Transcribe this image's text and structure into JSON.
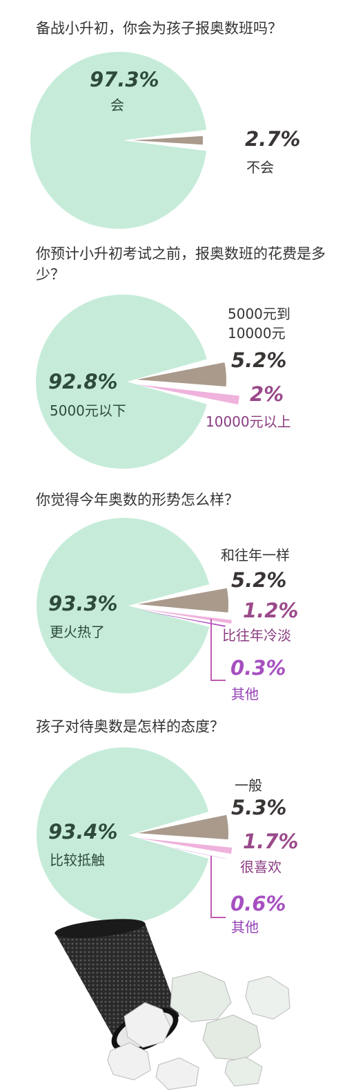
{
  "colors": {
    "main": "#c6ecd9",
    "gray": "#a99a8b",
    "pink": "#efb2dc",
    "purple": "#b04cc4"
  },
  "chart_data": [
    {
      "type": "pie",
      "title": "备战小升初，你会为孩子报奥数班吗？",
      "slices": [
        {
          "label": "会",
          "value": 97.3,
          "value_text": "97.3%",
          "color": "#c6ecd9"
        },
        {
          "label": "不会",
          "value": 2.7,
          "value_text": "2.7%",
          "color": "#a99a8b"
        }
      ]
    },
    {
      "type": "pie",
      "title": "你预计小升初考试之前，报奥数班的花费是多少？",
      "slices": [
        {
          "label": "5000元以下",
          "value": 92.8,
          "value_text": "92.8%",
          "color": "#c6ecd9"
        },
        {
          "label": "5000元到10000元",
          "label_line1": "5000元到",
          "label_line2": "10000元",
          "value": 5.2,
          "value_text": "5.2%",
          "color": "#a99a8b"
        },
        {
          "label": "10000元以上",
          "value": 2,
          "value_text": "2%",
          "color": "#efb2dc"
        }
      ]
    },
    {
      "type": "pie",
      "title": "你觉得今年奥数的形势怎么样？",
      "slices": [
        {
          "label": "更火热了",
          "value": 93.3,
          "value_text": "93.3%",
          "color": "#c6ecd9"
        },
        {
          "label": "和往年一样",
          "value": 5.2,
          "value_text": "5.2%",
          "color": "#a99a8b"
        },
        {
          "label": "比往年冷淡",
          "value": 1.2,
          "value_text": "1.2%",
          "color": "#efb2dc"
        },
        {
          "label": "其他",
          "value": 0.3,
          "value_text": "0.3%",
          "color": "#b04cc4"
        }
      ]
    },
    {
      "type": "pie",
      "title": "孩子对待奥数是怎样的态度？",
      "slices": [
        {
          "label": "比较抵触",
          "value": 93.4,
          "value_text": "93.4%",
          "color": "#c6ecd9"
        },
        {
          "label": "一般",
          "value": 5.3,
          "value_text": "5.3%",
          "color": "#a99a8b"
        },
        {
          "label": "很喜欢",
          "value": 1.7,
          "value_text": "1.7%",
          "color": "#efb2dc"
        },
        {
          "label": "其他",
          "value": 0.6,
          "value_text": "0.6%",
          "color": "#b04cc4"
        }
      ]
    }
  ]
}
